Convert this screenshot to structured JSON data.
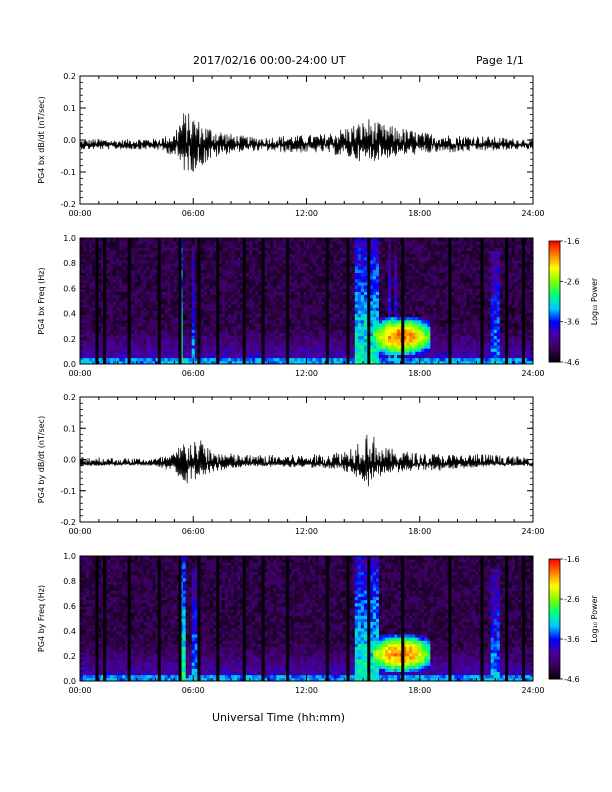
{
  "header": {
    "title": "2017/02/16  00:00-24:00 UT",
    "page": "Page 1/1"
  },
  "footer": {
    "xlabel": "Universal Time (hh:mm)"
  },
  "colorbar": {
    "label": "Log₁₀ Power",
    "tick_labels": [
      "-1.6",
      "-2.6",
      "-3.6",
      "-4.6"
    ],
    "range": [
      -4.6,
      -1.6
    ],
    "colormap": [
      "#000000",
      "#3b0058",
      "#4a00a0",
      "#0000ff",
      "#00c8ff",
      "#00ff80",
      "#80ff00",
      "#ffff00",
      "#ff8000",
      "#ff0000"
    ]
  },
  "chart_data": [
    {
      "type": "line",
      "ylabel": "PG4 bx dB/dt (nT/sec)",
      "xlim": [
        0,
        24
      ],
      "ylim": [
        -0.2,
        0.2
      ],
      "xtick_labels": [
        "00:00",
        "06:00",
        "12:00",
        "18:00",
        "24:00"
      ],
      "ytick_labels": [
        "0.2",
        "0.1",
        "0.0",
        "-0.1",
        "-0.2"
      ],
      "envelope": {
        "hours": [
          0,
          1,
          2,
          3,
          4,
          5,
          5.2,
          5.5,
          6.0,
          6.5,
          7.0,
          7.5,
          8,
          9,
          10,
          11,
          12,
          13,
          14,
          14.5,
          15,
          15.3,
          16,
          17,
          18,
          19,
          20,
          21,
          22,
          23,
          24
        ],
        "upper": [
          0.0,
          0.005,
          0.0,
          0.005,
          0.005,
          0.02,
          0.06,
          0.09,
          0.08,
          0.05,
          0.04,
          0.03,
          0.02,
          0.01,
          0.01,
          0.015,
          0.015,
          0.02,
          0.04,
          0.05,
          0.06,
          0.07,
          0.05,
          0.04,
          0.025,
          0.02,
          0.015,
          0.015,
          0.01,
          0.005,
          0.005
        ],
        "lower": [
          -0.03,
          -0.03,
          -0.03,
          -0.03,
          -0.03,
          -0.05,
          -0.08,
          -0.1,
          -0.1,
          -0.08,
          -0.06,
          -0.05,
          -0.04,
          -0.035,
          -0.035,
          -0.04,
          -0.04,
          -0.04,
          -0.055,
          -0.06,
          -0.07,
          -0.07,
          -0.06,
          -0.05,
          -0.045,
          -0.04,
          -0.04,
          -0.035,
          -0.035,
          -0.03,
          -0.03
        ]
      }
    },
    {
      "type": "heatmap",
      "ylabel": "PG4 bx Freq (Hz)",
      "xlim": [
        0,
        24
      ],
      "ylim": [
        0,
        1.0
      ],
      "xtick_labels": [
        "00:00",
        "06:00",
        "12:00",
        "18:00",
        "24:00"
      ],
      "ytick_labels": [
        "1.0",
        "0.8",
        "0.6",
        "0.4",
        "0.2",
        "0.0"
      ],
      "data_gaps_hours": [
        0.9,
        1.3,
        2.6,
        4.2,
        5.3,
        6.3,
        7.3,
        8.7,
        9.7,
        11.0,
        13.1,
        14.2,
        15.3,
        17.1,
        19.6,
        21.3,
        22.6,
        23.5
      ],
      "bursts": [
        {
          "hours": [
            5.3,
            5.5
          ],
          "top_hz": 1.0,
          "level": -2.9
        },
        {
          "hours": [
            6.0,
            6.15
          ],
          "top_hz": 0.95,
          "level": -3.3
        },
        {
          "hours": [
            14.6,
            15.9
          ],
          "top_hz": 1.0,
          "level": -3.0
        },
        {
          "hours": [
            16.3,
            16.4
          ],
          "top_hz": 1.0,
          "level": -3.3
        },
        {
          "hours": [
            16.6,
            16.75
          ],
          "top_hz": 0.85,
          "level": -3.3
        },
        {
          "hours": [
            21.8,
            22.3
          ],
          "top_hz": 0.9,
          "level": -3.3
        }
      ],
      "hotspot": {
        "hours": [
          15.5,
          18.5
        ],
        "freq_hz": [
          0.12,
          0.32
        ],
        "peak": -1.9
      }
    },
    {
      "type": "line",
      "ylabel": "PG4 by dB/dt (nT/sec)",
      "xlim": [
        0,
        24
      ],
      "ylim": [
        -0.2,
        0.2
      ],
      "xtick_labels": [
        "00:00",
        "06:00",
        "12:00",
        "18:00",
        "24:00"
      ],
      "ytick_labels": [
        "0.2",
        "0.1",
        "0.0",
        "-0.1",
        "-0.2"
      ],
      "envelope": {
        "hours": [
          0,
          1,
          2,
          3,
          4,
          5,
          5.2,
          5.5,
          6.0,
          6.5,
          7.0,
          7.5,
          8,
          9,
          10,
          11,
          12,
          13,
          14,
          14.5,
          15,
          15.3,
          16,
          17,
          18,
          19,
          20,
          21,
          22,
          23,
          24
        ],
        "upper": [
          0.01,
          0.01,
          0.005,
          0.005,
          0.005,
          0.02,
          0.04,
          0.06,
          0.07,
          0.06,
          0.03,
          0.025,
          0.02,
          0.015,
          0.015,
          0.015,
          0.015,
          0.02,
          0.03,
          0.05,
          0.08,
          0.1,
          0.04,
          0.03,
          0.02,
          0.02,
          0.015,
          0.02,
          0.015,
          0.01,
          0.01
        ],
        "lower": [
          -0.02,
          -0.02,
          -0.02,
          -0.02,
          -0.02,
          -0.05,
          -0.08,
          -0.08,
          -0.07,
          -0.05,
          -0.04,
          -0.035,
          -0.03,
          -0.02,
          -0.025,
          -0.025,
          -0.025,
          -0.03,
          -0.04,
          -0.05,
          -0.07,
          -0.09,
          -0.05,
          -0.04,
          -0.035,
          -0.04,
          -0.03,
          -0.025,
          -0.02,
          -0.02,
          -0.02
        ]
      }
    },
    {
      "type": "heatmap",
      "ylabel": "PG4 by Freq (Hz)",
      "xlim": [
        0,
        24
      ],
      "ylim": [
        0,
        1.0
      ],
      "xtick_labels": [
        "00:00",
        "06:00",
        "12:00",
        "18:00",
        "24:00"
      ],
      "ytick_labels": [
        "1.0",
        "0.8",
        "0.6",
        "0.4",
        "0.2",
        "0.0"
      ],
      "data_gaps_hours": [
        0.9,
        1.3,
        2.6,
        4.2,
        5.3,
        6.3,
        7.3,
        8.7,
        9.7,
        11.0,
        13.1,
        14.2,
        15.3,
        17.1,
        19.6,
        21.3,
        22.6,
        23.5
      ],
      "bursts": [
        {
          "hours": [
            5.3,
            5.6
          ],
          "top_hz": 1.0,
          "level": -2.9
        },
        {
          "hours": [
            6.0,
            6.2
          ],
          "top_hz": 0.9,
          "level": -3.3
        },
        {
          "hours": [
            14.6,
            15.9
          ],
          "top_hz": 1.0,
          "level": -3.0
        },
        {
          "hours": [
            21.8,
            22.3
          ],
          "top_hz": 0.9,
          "level": -3.3
        }
      ],
      "hotspot": {
        "hours": [
          15.5,
          18.5
        ],
        "freq_hz": [
          0.12,
          0.32
        ],
        "peak": -1.9
      }
    }
  ]
}
